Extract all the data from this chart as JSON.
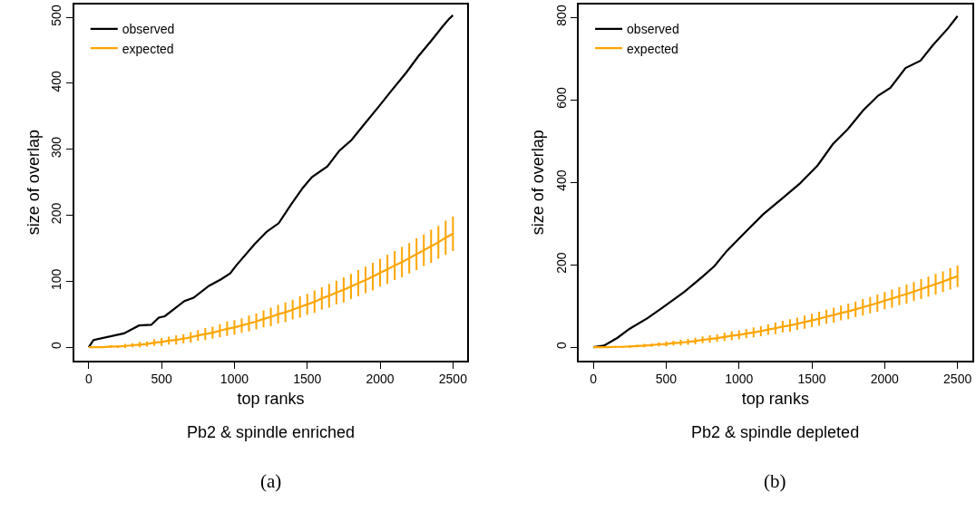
{
  "chart_data": [
    {
      "type": "line",
      "title": "Pb2 & spindle enriched",
      "xlabel": "top ranks",
      "ylabel": "size of overlap",
      "annotations": [
        "(a)"
      ],
      "xlim": [
        -100,
        2600
      ],
      "ylim": [
        -20,
        520
      ],
      "xticks": [
        0,
        500,
        1000,
        1500,
        2000,
        2500
      ],
      "yticks": [
        0,
        100,
        200,
        300,
        400,
        500
      ],
      "legend": "top left",
      "series": [
        {
          "name": "observed",
          "color": "#000000",
          "x": [
            0,
            33,
            242,
            345,
            429,
            481,
            522,
            657,
            720,
            825,
            908,
            971,
            1013,
            1138,
            1221,
            1304,
            1388,
            1471,
            1533,
            1638,
            1721,
            1804,
            1888,
            1992,
            2075,
            2179,
            2263,
            2346,
            2429,
            2471,
            2500
          ],
          "values": [
            0,
            11,
            21,
            33,
            34,
            45,
            47,
            70,
            75,
            93,
            103,
            112,
            124,
            156,
            175,
            188,
            216,
            242,
            258,
            274,
            298,
            314,
            337,
            365,
            388,
            416,
            441,
            463,
            486,
            497,
            503
          ]
        },
        {
          "name": "expected",
          "color": "#ffa500",
          "x": [
            0,
            50,
            100,
            150,
            200,
            250,
            300,
            350,
            400,
            450,
            500,
            550,
            600,
            650,
            700,
            750,
            800,
            850,
            900,
            950,
            1000,
            1050,
            1100,
            1150,
            1200,
            1250,
            1300,
            1350,
            1400,
            1450,
            1500,
            1550,
            1600,
            1650,
            1700,
            1750,
            1800,
            1850,
            1900,
            1950,
            2000,
            2050,
            2100,
            2150,
            2200,
            2250,
            2300,
            2350,
            2400,
            2450,
            2500
          ],
          "values": [
            0,
            0,
            0,
            1,
            1,
            2,
            3,
            4,
            5,
            7,
            8,
            10,
            11,
            13,
            15,
            18,
            20,
            22,
            25,
            28,
            30,
            33,
            36,
            39,
            43,
            46,
            50,
            53,
            57,
            61,
            65,
            69,
            74,
            78,
            83,
            87,
            92,
            97,
            102,
            107,
            113,
            118,
            124,
            129,
            135,
            141,
            147,
            153,
            159,
            166,
            172
          ],
          "errors": [
            0,
            0,
            0,
            2,
            2,
            3,
            3,
            4,
            4,
            5,
            6,
            6,
            7,
            7,
            8,
            8,
            9,
            9,
            10,
            11,
            11,
            11,
            12,
            12,
            13,
            14,
            14,
            15,
            15,
            16,
            16,
            17,
            17,
            18,
            18,
            19,
            19,
            20,
            20,
            21,
            21,
            22,
            22,
            23,
            23,
            24,
            24,
            25,
            25,
            26,
            26
          ]
        }
      ]
    },
    {
      "type": "line",
      "title": "Pb2 & spindle depleted",
      "xlabel": "top ranks",
      "ylabel": "size of overlap",
      "annotations": [
        "(b)"
      ],
      "xlim": [
        -100,
        2600
      ],
      "ylim": [
        -32,
        832
      ],
      "xticks": [
        0,
        500,
        1000,
        1500,
        2000,
        2500
      ],
      "yticks": [
        0,
        200,
        400,
        600,
        800
      ],
      "legend": "top left",
      "series": [
        {
          "name": "observed",
          "color": "#000000",
          "x": [
            0,
            73,
            166,
            250,
            374,
            478,
            624,
            749,
            832,
            915,
            1040,
            1165,
            1290,
            1415,
            1540,
            1643,
            1747,
            1851,
            1955,
            2039,
            2143,
            2246,
            2330,
            2434,
            2500
          ],
          "values": [
            0,
            4,
            23,
            45,
            71,
            97,
            134,
            171,
            197,
            233,
            278,
            322,
            359,
            396,
            441,
            492,
            529,
            574,
            610,
            629,
            677,
            695,
            732,
            773,
            803
          ]
        },
        {
          "name": "expected",
          "color": "#ffa500",
          "x": [
            0,
            50,
            100,
            150,
            200,
            250,
            300,
            350,
            400,
            450,
            500,
            550,
            600,
            650,
            700,
            750,
            800,
            850,
            900,
            950,
            1000,
            1050,
            1100,
            1150,
            1200,
            1250,
            1300,
            1350,
            1400,
            1450,
            1500,
            1550,
            1600,
            1650,
            1700,
            1750,
            1800,
            1850,
            1900,
            1950,
            2000,
            2050,
            2100,
            2150,
            2200,
            2250,
            2300,
            2350,
            2400,
            2450,
            2500
          ],
          "values": [
            0,
            0,
            0,
            1,
            1,
            2,
            3,
            4,
            5,
            7,
            8,
            10,
            11,
            13,
            15,
            18,
            20,
            22,
            25,
            28,
            30,
            33,
            36,
            39,
            43,
            46,
            50,
            53,
            57,
            61,
            65,
            69,
            74,
            78,
            83,
            87,
            92,
            97,
            102,
            107,
            113,
            118,
            124,
            129,
            135,
            141,
            147,
            153,
            159,
            166,
            172
          ],
          "errors": [
            0,
            0,
            0,
            2,
            2,
            3,
            3,
            4,
            4,
            5,
            6,
            6,
            7,
            7,
            8,
            8,
            9,
            9,
            10,
            11,
            11,
            11,
            12,
            12,
            13,
            14,
            14,
            15,
            15,
            16,
            16,
            17,
            17,
            18,
            18,
            19,
            19,
            20,
            20,
            21,
            21,
            22,
            22,
            23,
            23,
            24,
            24,
            25,
            25,
            26,
            26
          ]
        }
      ]
    }
  ]
}
